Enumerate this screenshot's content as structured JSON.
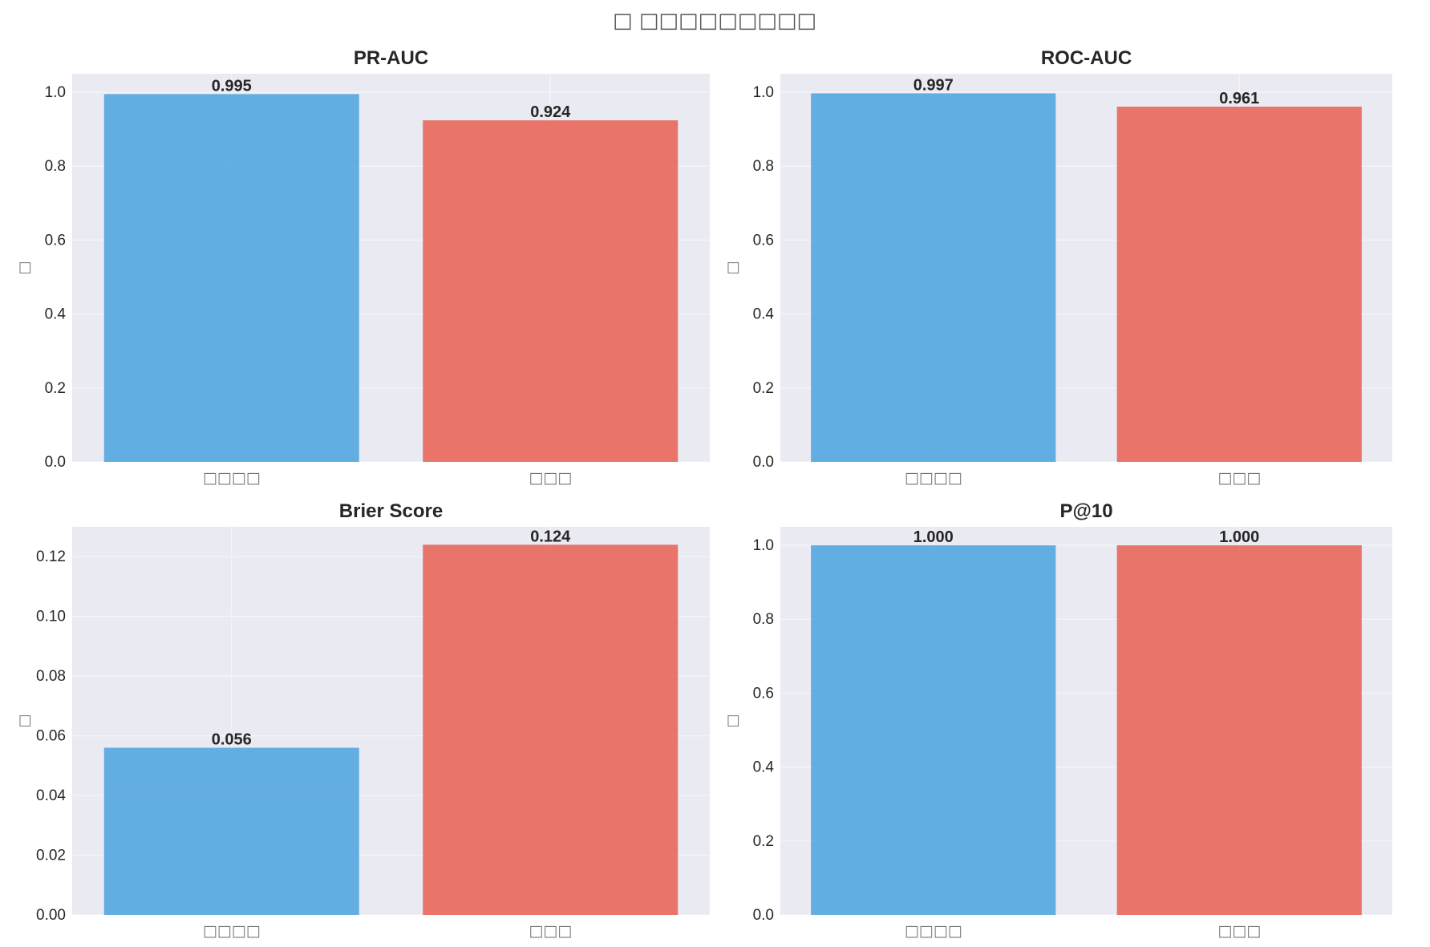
{
  "title": "□ □□□□□□□□□",
  "colors": {
    "series_a": "#3498db",
    "series_b": "#e74c3c",
    "plot_bg": "#eaeaf2"
  },
  "chart_data": [
    {
      "type": "bar",
      "title": "PR-AUC",
      "ylabel": "□",
      "categories": [
        "□□□□",
        "□□□"
      ],
      "values": [
        0.995,
        0.924
      ],
      "value_labels": [
        "0.995",
        "0.924"
      ],
      "ylim": [
        0,
        1.05
      ],
      "yticks": [
        0.0,
        0.2,
        0.4,
        0.6,
        0.8,
        1.0
      ],
      "ytick_labels": [
        "0.0",
        "0.2",
        "0.4",
        "0.6",
        "0.8",
        "1.0"
      ],
      "grid": true
    },
    {
      "type": "bar",
      "title": "ROC-AUC",
      "ylabel": "□",
      "categories": [
        "□□□□",
        "□□□"
      ],
      "values": [
        0.997,
        0.961
      ],
      "value_labels": [
        "0.997",
        "0.961"
      ],
      "ylim": [
        0,
        1.05
      ],
      "yticks": [
        0.0,
        0.2,
        0.4,
        0.6,
        0.8,
        1.0
      ],
      "ytick_labels": [
        "0.0",
        "0.2",
        "0.4",
        "0.6",
        "0.8",
        "1.0"
      ],
      "grid": true
    },
    {
      "type": "bar",
      "title": "Brier Score",
      "ylabel": "□",
      "categories": [
        "□□□□",
        "□□□"
      ],
      "values": [
        0.056,
        0.124
      ],
      "value_labels": [
        "0.056",
        "0.124"
      ],
      "ylim": [
        0,
        0.13
      ],
      "yticks": [
        0.0,
        0.02,
        0.04,
        0.06,
        0.08,
        0.1,
        0.12
      ],
      "ytick_labels": [
        "0.00",
        "0.02",
        "0.04",
        "0.06",
        "0.08",
        "0.10",
        "0.12"
      ],
      "grid": true
    },
    {
      "type": "bar",
      "title": "P@10",
      "ylabel": "□",
      "categories": [
        "□□□□",
        "□□□"
      ],
      "values": [
        1.0,
        1.0
      ],
      "value_labels": [
        "1.000",
        "1.000"
      ],
      "ylim": [
        0,
        1.05
      ],
      "yticks": [
        0.0,
        0.2,
        0.4,
        0.6,
        0.8,
        1.0
      ],
      "ytick_labels": [
        "0.0",
        "0.2",
        "0.4",
        "0.6",
        "0.8",
        "1.0"
      ],
      "grid": true
    }
  ]
}
